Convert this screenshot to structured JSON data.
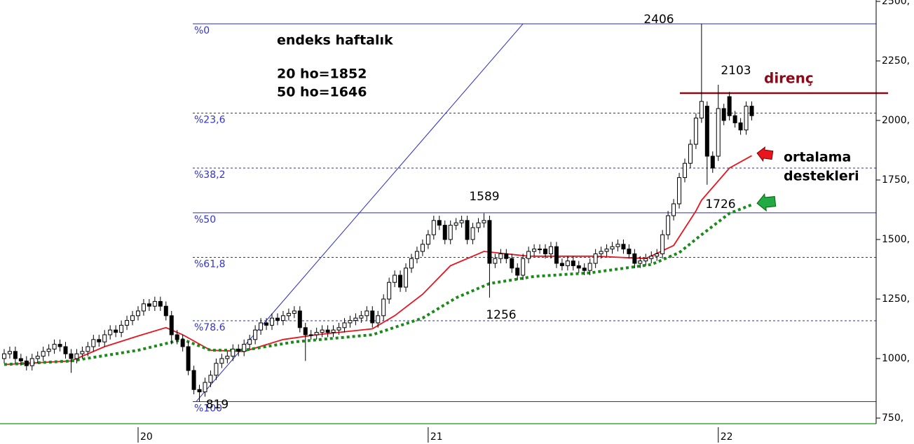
{
  "chart_data": {
    "type": "candlestick",
    "xlim": [
      -24.75,
      132.3
    ],
    "ylim": [
      726.5,
      2505.9
    ],
    "xticks": [
      {
        "value": 0,
        "label": "20"
      },
      {
        "value": 52,
        "label": "21"
      },
      {
        "value": 104,
        "label": "22"
      }
    ],
    "yticks": [
      {
        "value": 750,
        "label": "750,"
      },
      {
        "value": 1000,
        "label": "1000,"
      },
      {
        "value": 1250,
        "label": "1250,"
      },
      {
        "value": 1500,
        "label": "1500,"
      },
      {
        "value": 1750,
        "label": "1750,"
      },
      {
        "value": 2000,
        "label": "2000,"
      },
      {
        "value": 2250,
        "label": "2250,"
      },
      {
        "value": 2500,
        "label": "2500,"
      }
    ],
    "x": [
      -24,
      -23,
      -22,
      -21,
      -20,
      -19,
      -18,
      -17,
      -16,
      -15,
      -14,
      -13,
      -12,
      -11,
      -10,
      -9,
      -8,
      -7,
      -6,
      -5,
      -4,
      -3,
      -2,
      -1,
      0,
      1,
      2,
      3,
      4,
      5,
      6,
      7,
      8,
      9,
      10,
      11,
      12,
      13,
      14,
      15,
      16,
      17,
      18,
      19,
      20,
      21,
      22,
      23,
      24,
      25,
      26,
      27,
      28,
      29,
      30,
      31,
      32,
      33,
      34,
      35,
      36,
      37,
      38,
      39,
      40,
      41,
      42,
      43,
      44,
      45,
      46,
      47,
      48,
      49,
      50,
      51,
      52,
      53,
      54,
      55,
      56,
      57,
      58,
      59,
      60,
      61,
      62,
      63,
      64,
      65,
      66,
      67,
      68,
      69,
      70,
      71,
      72,
      73,
      74,
      75,
      76,
      77,
      78,
      79,
      80,
      81,
      82,
      83,
      84,
      85,
      86,
      87,
      88,
      89,
      90,
      91,
      92,
      93,
      94,
      95,
      96,
      97,
      98,
      99,
      100,
      101,
      102,
      103,
      104,
      105,
      106,
      107,
      108,
      109,
      110
    ],
    "open": [
      1000,
      1020,
      1030,
      1000,
      990,
      970,
      1000,
      1010,
      1030,
      1040,
      1060,
      1050,
      1020,
      1000,
      1020,
      1030,
      1050,
      1080,
      1070,
      1100,
      1120,
      1110,
      1140,
      1160,
      1180,
      1200,
      1230,
      1220,
      1240,
      1220,
      1180,
      1100,
      1080,
      1050,
      950,
      870,
      860,
      900,
      930,
      980,
      1000,
      1010,
      1040,
      1030,
      1060,
      1080,
      1120,
      1150,
      1140,
      1170,
      1160,
      1180,
      1190,
      1200,
      1130,
      1100,
      1100,
      1110,
      1120,
      1110,
      1120,
      1130,
      1150,
      1160,
      1170,
      1180,
      1200,
      1150,
      1180,
      1250,
      1320,
      1350,
      1300,
      1380,
      1420,
      1450,
      1480,
      1520,
      1580,
      1560,
      1500,
      1560,
      1570,
      1580,
      1500,
      1550,
      1570,
      1580,
      1400,
      1420,
      1440,
      1420,
      1380,
      1350,
      1420,
      1450,
      1460,
      1460,
      1440,
      1470,
      1400,
      1390,
      1410,
      1390,
      1380,
      1370,
      1400,
      1440,
      1450,
      1460,
      1470,
      1480,
      1460,
      1440,
      1400,
      1410,
      1420,
      1430,
      1440,
      1520,
      1600,
      1650,
      1760,
      1820,
      1900,
      2010,
      2060,
      1850,
      1850,
      2050,
      2100,
      2020,
      1990,
      1960,
      2060
    ],
    "high": [
      1040,
      1050,
      1050,
      1020,
      1010,
      1020,
      1030,
      1050,
      1060,
      1080,
      1080,
      1070,
      1040,
      1040,
      1050,
      1070,
      1100,
      1100,
      1120,
      1140,
      1140,
      1160,
      1180,
      1200,
      1220,
      1250,
      1250,
      1260,
      1260,
      1240,
      1200,
      1120,
      1100,
      1070,
      970,
      890,
      920,
      950,
      1000,
      1020,
      1030,
      1060,
      1060,
      1080,
      1100,
      1140,
      1170,
      1170,
      1190,
      1190,
      1200,
      1210,
      1220,
      1220,
      1150,
      1120,
      1130,
      1140,
      1140,
      1140,
      1150,
      1170,
      1180,
      1190,
      1200,
      1220,
      1220,
      1200,
      1270,
      1340,
      1370,
      1370,
      1400,
      1440,
      1470,
      1500,
      1540,
      1600,
      1600,
      1580,
      1580,
      1590,
      1600,
      1600,
      1570,
      1590,
      1610,
      1600,
      1440,
      1460,
      1460,
      1440,
      1400,
      1440,
      1470,
      1480,
      1480,
      1480,
      1490,
      1490,
      1420,
      1430,
      1430,
      1410,
      1400,
      1420,
      1460,
      1470,
      1480,
      1490,
      1500,
      1500,
      1480,
      1460,
      1430,
      1440,
      1450,
      1460,
      1540,
      1620,
      1670,
      1780,
      1840,
      1920,
      2030,
      2406,
      2080,
      1870,
      2150,
      2070,
      2120,
      2040,
      2010,
      2080,
      2080
    ],
    "low": [
      980,
      1000,
      980,
      970,
      950,
      950,
      980,
      990,
      1010,
      1020,
      1030,
      1000,
      940,
      980,
      1000,
      1010,
      1030,
      1050,
      1050,
      1080,
      1090,
      1090,
      1120,
      1140,
      1160,
      1180,
      1200,
      1200,
      1200,
      1160,
      1060,
      1060,
      1030,
      930,
      850,
      819,
      840,
      880,
      910,
      960,
      980,
      990,
      1010,
      1010,
      1040,
      1060,
      1100,
      1120,
      1120,
      1140,
      1140,
      1160,
      1170,
      1110,
      990,
      1080,
      1080,
      1090,
      1090,
      1090,
      1100,
      1110,
      1130,
      1140,
      1150,
      1160,
      1130,
      1130,
      1160,
      1230,
      1300,
      1280,
      1280,
      1360,
      1400,
      1430,
      1460,
      1500,
      1540,
      1480,
      1480,
      1540,
      1550,
      1480,
      1480,
      1530,
      1550,
      1256,
      1380,
      1400,
      1400,
      1360,
      1330,
      1330,
      1400,
      1430,
      1440,
      1420,
      1420,
      1380,
      1370,
      1370,
      1370,
      1360,
      1350,
      1350,
      1380,
      1420,
      1430,
      1440,
      1450,
      1440,
      1420,
      1380,
      1380,
      1390,
      1400,
      1410,
      1420,
      1500,
      1580,
      1630,
      1740,
      1800,
      1880,
      1990,
      1730,
      1780,
      1830,
      1980,
      2000,
      1970,
      1940,
      1940,
      2000
    ],
    "close": [
      1020,
      1030,
      1000,
      990,
      970,
      1000,
      1010,
      1030,
      1040,
      1060,
      1050,
      1020,
      1000,
      1020,
      1030,
      1050,
      1080,
      1070,
      1100,
      1120,
      1110,
      1140,
      1160,
      1180,
      1200,
      1230,
      1220,
      1240,
      1220,
      1180,
      1100,
      1080,
      1050,
      950,
      870,
      860,
      900,
      930,
      980,
      1000,
      1010,
      1040,
      1030,
      1060,
      1080,
      1120,
      1150,
      1140,
      1170,
      1160,
      1180,
      1190,
      1200,
      1130,
      1100,
      1100,
      1110,
      1120,
      1110,
      1120,
      1130,
      1150,
      1160,
      1170,
      1180,
      1200,
      1150,
      1180,
      1250,
      1320,
      1350,
      1300,
      1380,
      1420,
      1450,
      1480,
      1520,
      1580,
      1560,
      1500,
      1560,
      1570,
      1580,
      1500,
      1550,
      1570,
      1580,
      1400,
      1420,
      1440,
      1420,
      1380,
      1350,
      1420,
      1450,
      1460,
      1460,
      1440,
      1470,
      1400,
      1390,
      1410,
      1390,
      1380,
      1370,
      1400,
      1440,
      1450,
      1460,
      1470,
      1480,
      1460,
      1440,
      1400,
      1410,
      1420,
      1430,
      1440,
      1520,
      1600,
      1650,
      1760,
      1820,
      1900,
      2010,
      2080,
      1850,
      1800,
      2050,
      2000,
      2020,
      1990,
      1960,
      2060,
      2020
    ],
    "moving_averages": [
      {
        "color": "#e8141e",
        "dashed": false,
        "x": [
          -24,
          -12,
          -6,
          0,
          5,
          8,
          13,
          19,
          26,
          32,
          42,
          46,
          51,
          56,
          62,
          70,
          82,
          91,
          96,
          100,
          101,
          106,
          110
        ],
        "values": [
          975,
          990,
          1050,
          1095,
          1130,
          1100,
          1035,
          1030,
          1080,
          1100,
          1125,
          1180,
          1270,
          1390,
          1450,
          1430,
          1430,
          1420,
          1475,
          1620,
          1665,
          1800,
          1852
        ]
      },
      {
        "color": "#1a8a1a",
        "dashed": true,
        "x": [
          -24,
          -12,
          0,
          8,
          13,
          19,
          28,
          42,
          51,
          57,
          63,
          71,
          81,
          92,
          97,
          101,
          106,
          110
        ],
        "values": [
          975,
          990,
          1035,
          1080,
          1035,
          1035,
          1070,
          1100,
          1170,
          1255,
          1315,
          1345,
          1360,
          1395,
          1445,
          1520,
          1610,
          1646
        ]
      }
    ],
    "fibonacci": [
      {
        "value": 2406,
        "label": "%0",
        "dashed": false
      },
      {
        "value": 2031,
        "label": "%23,6",
        "dashed": true
      },
      {
        "value": 1800,
        "label": "%38,2",
        "dashed": true
      },
      {
        "value": 1612,
        "label": "%50",
        "dashed": false
      },
      {
        "value": 1425,
        "label": "%61,8",
        "dashed": true
      },
      {
        "value": 1159,
        "label": "%78.6",
        "dashed": true
      },
      {
        "value": 819,
        "label": "%100",
        "dashed": false
      }
    ],
    "trendline": {
      "x": [
        10.4,
        69
      ],
      "values": [
        819,
        2406
      ],
      "color": "#2a2acc"
    },
    "resistance": {
      "value": 2103,
      "label": "direnç",
      "color": "#8b0a1a"
    },
    "price_labels": [
      2406,
      2103,
      1589,
      1256,
      1726,
      819
    ],
    "notes": [
      "endeks haftalık",
      "20 ho=1852",
      "50 ho=1646"
    ],
    "callouts": [
      "ortalama",
      "destekleri"
    ]
  }
}
